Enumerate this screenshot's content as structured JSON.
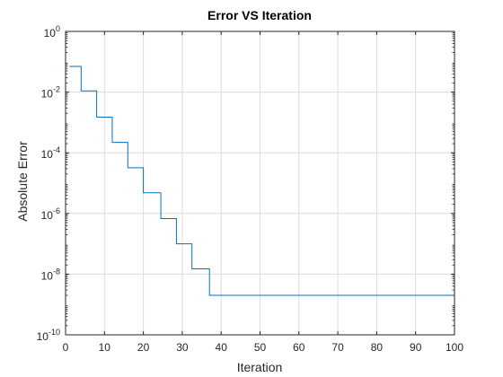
{
  "chart_data": {
    "type": "line",
    "title": "Error VS Iteration",
    "xlabel": "Iteration",
    "ylabel": "Absolute Error",
    "xlim": [
      0,
      100
    ],
    "ylim": [
      1e-10,
      1
    ],
    "yscale": "log",
    "grid": true,
    "x_ticks": [
      0,
      10,
      20,
      30,
      40,
      50,
      60,
      70,
      80,
      90,
      100
    ],
    "y_ticks": [
      {
        "value": 1,
        "base": "10",
        "exp": "0"
      },
      {
        "value": 0.01,
        "base": "10",
        "exp": "-2"
      },
      {
        "value": 0.0001,
        "base": "10",
        "exp": "-4"
      },
      {
        "value": 1e-06,
        "base": "10",
        "exp": "-6"
      },
      {
        "value": 1e-08,
        "base": "10",
        "exp": "-8"
      },
      {
        "value": 1e-10,
        "base": "10",
        "exp": "-10"
      }
    ],
    "series": [
      {
        "style": "stairs",
        "color": "#0072BD",
        "x": [
          1,
          4,
          8,
          12,
          16,
          20,
          24.5,
          28.5,
          32.5,
          37,
          100
        ],
        "y": [
          0.07,
          0.011,
          0.0015,
          0.00022,
          3.2e-05,
          4.8e-06,
          6.8e-07,
          1e-07,
          1.5e-08,
          2e-09,
          2e-09
        ]
      }
    ]
  }
}
